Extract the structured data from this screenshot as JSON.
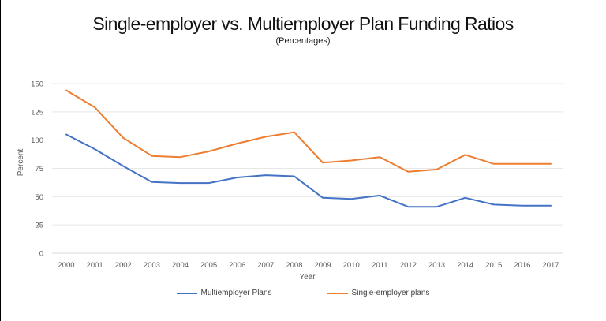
{
  "page": {
    "title": "Single-employer vs. Multiemployer Plan Funding Ratios",
    "subtitle": "(Percentages)"
  },
  "chart_data": {
    "type": "line",
    "title": "Single-employer vs. Multiemployer Plan Funding Ratios",
    "subtitle": "(Percentages)",
    "x": [
      "2000",
      "2001",
      "2002",
      "2003",
      "2004",
      "2005",
      "2006",
      "2007",
      "2008",
      "2009",
      "2010",
      "2011",
      "2012",
      "2013",
      "2014",
      "2015",
      "2016",
      "2017"
    ],
    "series": [
      {
        "name": "Multiemployer Plans",
        "color": "#4472C4",
        "values": [
          105,
          92,
          77,
          63,
          62,
          62,
          67,
          69,
          68,
          49,
          48,
          51,
          41,
          41,
          49,
          43,
          42,
          42
        ]
      },
      {
        "name": "Single-employer plans",
        "color": "#ED7D31",
        "values": [
          144,
          129,
          102,
          86,
          85,
          90,
          97,
          103,
          107,
          80,
          82,
          85,
          72,
          74,
          87,
          79,
          79,
          79
        ]
      }
    ],
    "xlabel": "Year",
    "ylabel": "Percent",
    "ylim": [
      0,
      150
    ],
    "y_ticks": [
      0,
      25,
      50,
      75,
      100,
      125,
      150
    ],
    "grid": true,
    "legend_position": "bottom",
    "style": {
      "gridline_color": "#e7e7e7",
      "baseline_color": "#d9d9d9",
      "tick_text_color": "#595959",
      "background": "#ffffff"
    }
  }
}
